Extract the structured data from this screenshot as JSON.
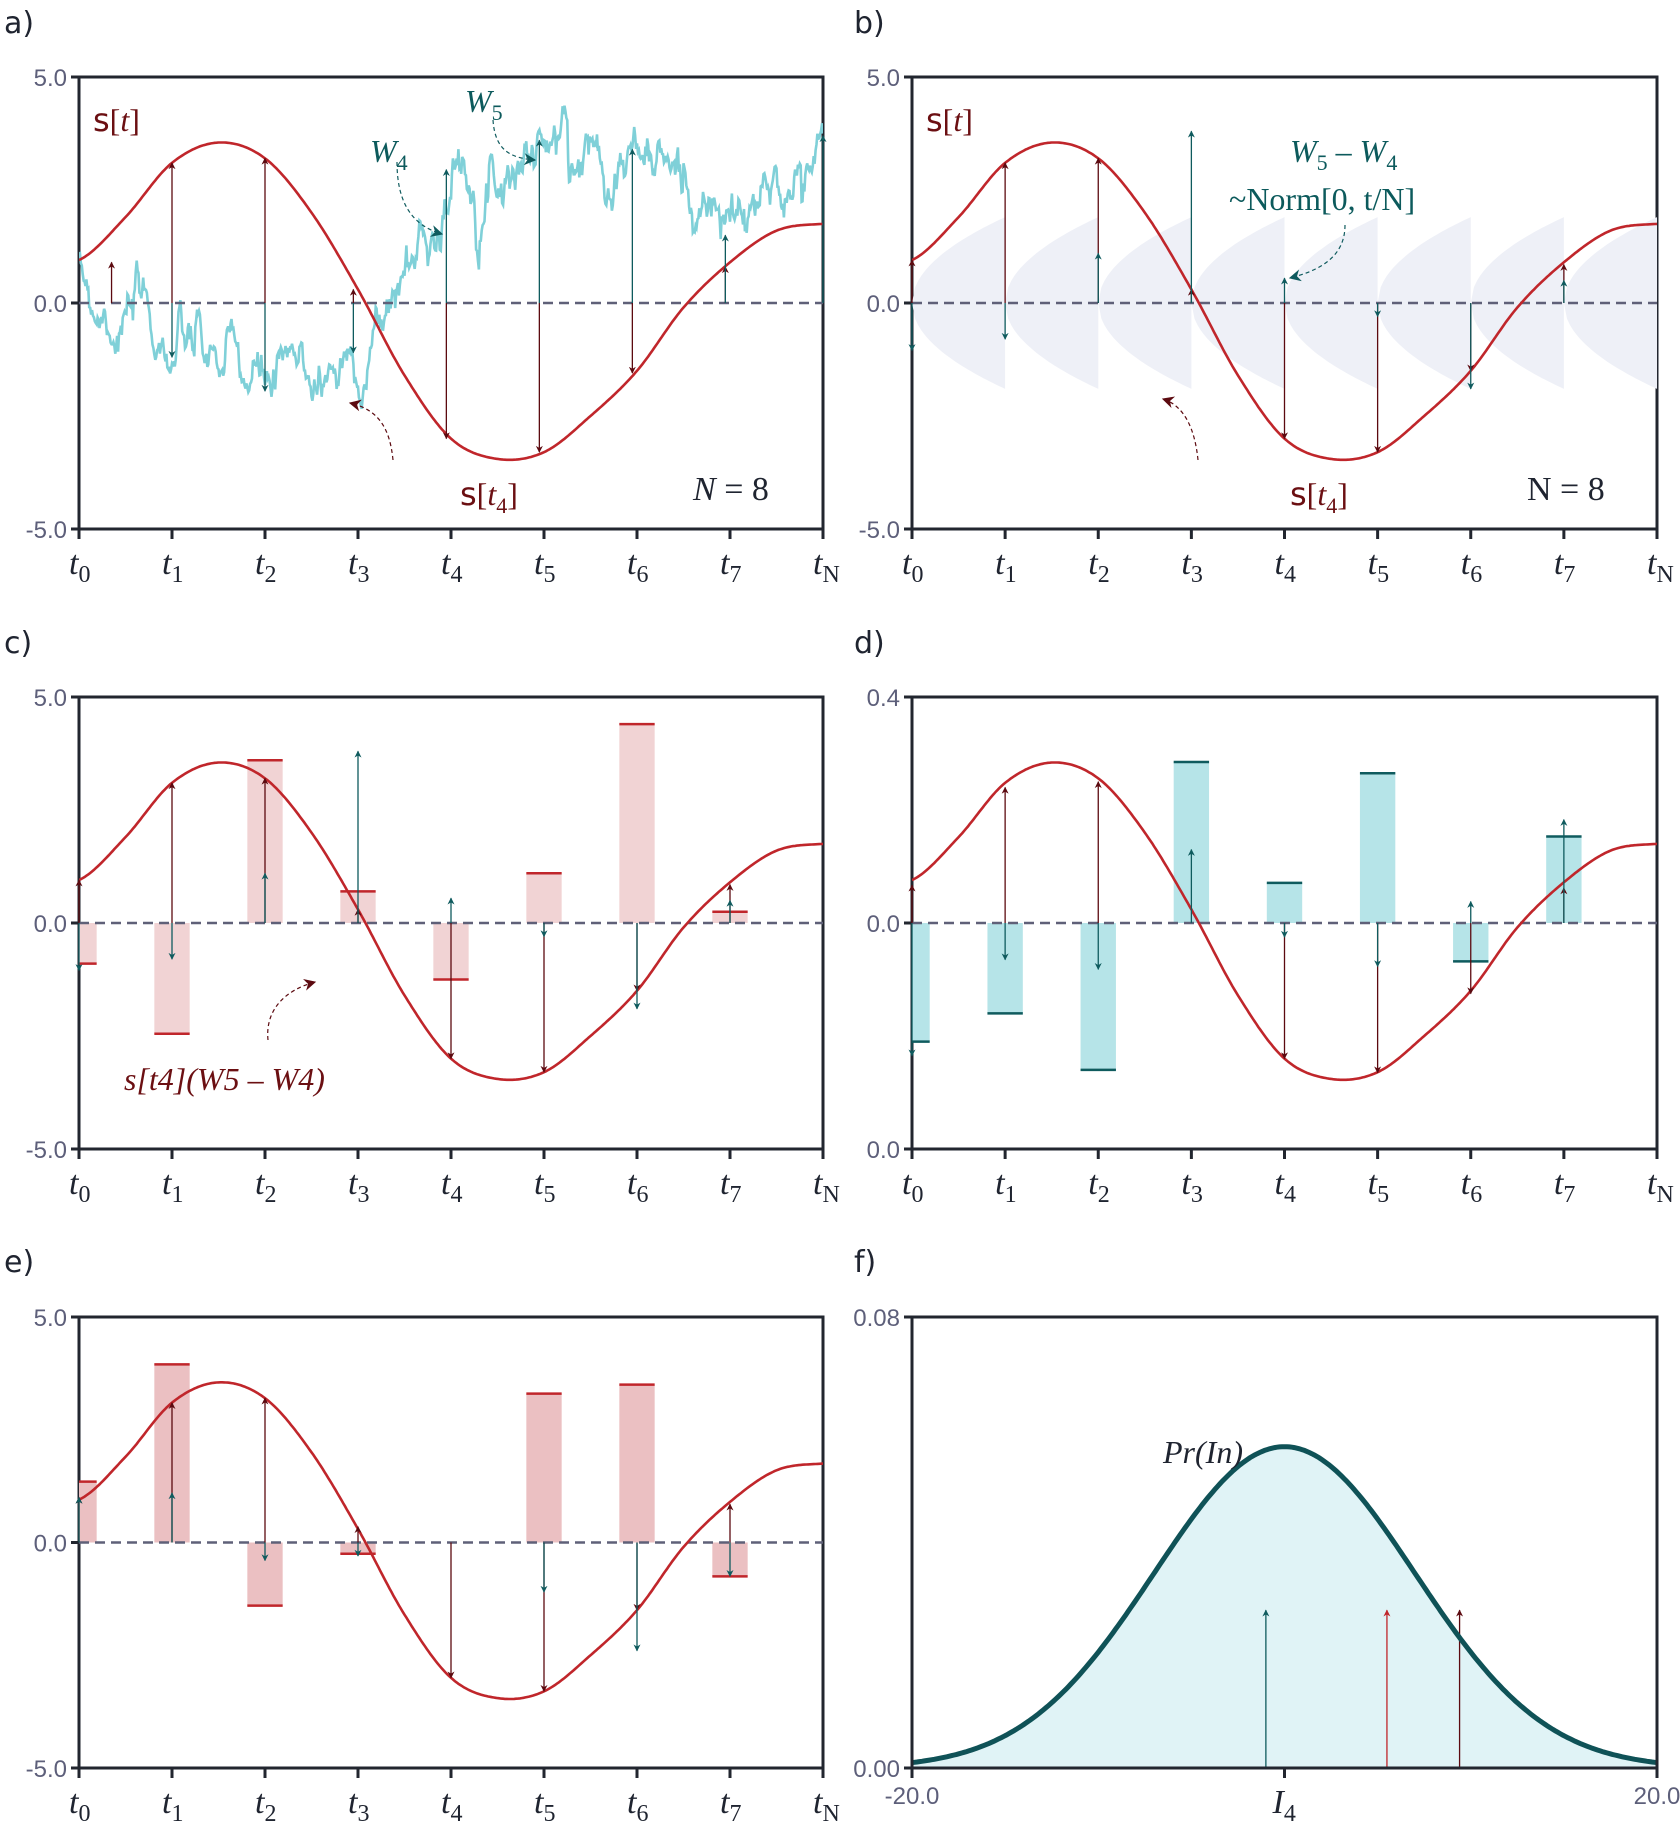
{
  "figure": {
    "panel_labels": [
      "a)",
      "b)",
      "c)",
      "d)",
      "e)",
      "f)"
    ],
    "colors": {
      "curve": "#c0262b",
      "s_arrow": "#5c0a10",
      "w_arrow": "#0f5b5e",
      "brownian": "#7fd0d8",
      "bar_red": "#ebc0c2",
      "bar_red_top": "#c0262b",
      "bar_teal": "#b6e4e8",
      "bar_teal_top": "#0f5b5e",
      "gauss_fill": "#e0f3f6",
      "gauss_line": "#0f5257",
      "band": "#eef0f7",
      "axis": "#22262f",
      "zero": "#5f6078"
    }
  },
  "chart_data": [
    {
      "panel": "a",
      "type": "line",
      "title": "",
      "xlabel": "",
      "ylabel": "",
      "ylim": [
        -5.0,
        5.0
      ],
      "yticks": [
        "5.0",
        "0.0",
        "-5.0"
      ],
      "xticks": [
        {
          "t": "t",
          "sub": "0"
        },
        {
          "t": "t",
          "sub": "1"
        },
        {
          "t": "t",
          "sub": "2"
        },
        {
          "t": "t",
          "sub": "3"
        },
        {
          "t": "t",
          "sub": "4"
        },
        {
          "t": "t",
          "sub": "5"
        },
        {
          "t": "t",
          "sub": "6"
        },
        {
          "t": "t",
          "sub": "7"
        },
        {
          "t": "t",
          "sub": "N"
        }
      ],
      "curve_s": {
        "x": [
          0,
          0.5,
          1,
          1.5,
          2,
          2.5,
          3,
          3.5,
          4,
          4.5,
          5,
          5.5,
          6,
          6.5,
          7,
          7.5,
          8
        ],
        "y": [
          0.95,
          1.9,
          3.1,
          3.55,
          3.2,
          2.0,
          0.3,
          -1.6,
          -3.0,
          -3.45,
          -3.3,
          -2.5,
          -1.5,
          -0.1,
          0.9,
          1.6,
          1.75
        ]
      },
      "s_arrows": [
        {
          "x": 0.35,
          "y": 0.9
        },
        {
          "x": 1,
          "y": 3.1
        },
        {
          "x": 2,
          "y": 3.2
        },
        {
          "x": 2.95,
          "y": 0.3
        },
        {
          "x": 3.95,
          "y": -3.0
        },
        {
          "x": 4.95,
          "y": -3.3
        },
        {
          "x": 5.95,
          "y": -1.55
        },
        {
          "x": 6.95,
          "y": 0.8
        }
      ],
      "w_arrows": [
        {
          "x": 1,
          "y": -1.2
        },
        {
          "x": 2,
          "y": -1.95
        },
        {
          "x": 2.95,
          "y": -1.1
        },
        {
          "x": 3.95,
          "y": 2.95
        },
        {
          "x": 4.95,
          "y": 3.6
        },
        {
          "x": 5.95,
          "y": 3.4
        },
        {
          "x": 6.95,
          "y": 1.5
        },
        {
          "x": 8,
          "y": 3.7
        }
      ],
      "annotations": {
        "s_label": "s",
        "s_arg": "t",
        "w4": "W",
        "w4_sub": "4",
        "w5": "W",
        "w5_sub": "5",
        "st4": "s",
        "st4_arg": "t",
        "st4_sub": "4",
        "n_label": "N = 8"
      }
    },
    {
      "panel": "b",
      "type": "line",
      "ylim": [
        -5.0,
        5.0
      ],
      "yticks": [
        "5.0",
        "0.0",
        "-5.0"
      ],
      "xticks": [
        {
          "t": "t",
          "sub": "0"
        },
        {
          "t": "t",
          "sub": "1"
        },
        {
          "t": "t",
          "sub": "2"
        },
        {
          "t": "t",
          "sub": "3"
        },
        {
          "t": "t",
          "sub": "4"
        },
        {
          "t": "t",
          "sub": "5"
        },
        {
          "t": "t",
          "sub": "6"
        },
        {
          "t": "t",
          "sub": "7"
        },
        {
          "t": "t",
          "sub": "N"
        }
      ],
      "s_arrows": [
        {
          "x": 0,
          "y": 0.95
        },
        {
          "x": 1,
          "y": 3.1
        },
        {
          "x": 2,
          "y": 3.2
        },
        {
          "x": 3,
          "y": 0.3
        },
        {
          "x": 4,
          "y": -3.0
        },
        {
          "x": 5,
          "y": -3.3
        },
        {
          "x": 6,
          "y": -1.5
        },
        {
          "x": 7,
          "y": 0.85
        }
      ],
      "dw_arrows": [
        {
          "x": 0,
          "y": -1.05
        },
        {
          "x": 1,
          "y": -0.8
        },
        {
          "x": 2,
          "y": 1.1
        },
        {
          "x": 3,
          "y": 3.8
        },
        {
          "x": 4,
          "y": 0.55
        },
        {
          "x": 5,
          "y": -0.3
        },
        {
          "x": 6,
          "y": -1.9
        },
        {
          "x": 7,
          "y": 0.5
        }
      ],
      "band_halfwidth": 1.9,
      "annotations": {
        "s_label": "s",
        "s_arg": "t",
        "diff_w5": "W",
        "diff_w5_sub": "5",
        "diff_minus": " – ",
        "diff_w4": "W",
        "diff_w4_sub": "4",
        "norm": "~Norm[0, t/N]",
        "st4": "s",
        "st4_arg": "t",
        "st4_sub": "4",
        "n_label": "N = 8"
      }
    },
    {
      "panel": "c",
      "type": "bar",
      "ylim": [
        -5.0,
        5.0
      ],
      "yticks": [
        "5.0",
        "0.0",
        "-5.0"
      ],
      "xticks": [
        {
          "t": "t",
          "sub": "0"
        },
        {
          "t": "t",
          "sub": "1"
        },
        {
          "t": "t",
          "sub": "2"
        },
        {
          "t": "t",
          "sub": "3"
        },
        {
          "t": "t",
          "sub": "4"
        },
        {
          "t": "t",
          "sub": "5"
        },
        {
          "t": "t",
          "sub": "6"
        },
        {
          "t": "t",
          "sub": "7"
        },
        {
          "t": "t",
          "sub": "N"
        }
      ],
      "bars": [
        -0.9,
        -2.45,
        3.6,
        0.7,
        -1.25,
        1.1,
        4.4,
        0.25
      ],
      "s_arrows": [
        {
          "x": 0,
          "y": 0.95
        },
        {
          "x": 1,
          "y": 3.1
        },
        {
          "x": 2,
          "y": 3.2
        },
        {
          "x": 3,
          "y": 0.3
        },
        {
          "x": 4,
          "y": -3.0
        },
        {
          "x": 5,
          "y": -3.3
        },
        {
          "x": 6,
          "y": -1.5
        },
        {
          "x": 7,
          "y": 0.85
        }
      ],
      "dw_arrows": [
        {
          "x": 0,
          "y": -1.05
        },
        {
          "x": 1,
          "y": -0.8
        },
        {
          "x": 2,
          "y": 1.1
        },
        {
          "x": 3,
          "y": 3.8
        },
        {
          "x": 4,
          "y": 0.55
        },
        {
          "x": 5,
          "y": -0.3
        },
        {
          "x": 6,
          "y": -1.9
        },
        {
          "x": 7,
          "y": 0.5
        }
      ],
      "annotations": {
        "product_label": "s[t4](W5 – W4)"
      }
    },
    {
      "panel": "d",
      "type": "bar",
      "ylim": [
        -0.4,
        0.4
      ],
      "yticks": [
        "0.4",
        "0.0",
        "0.0"
      ],
      "xticks": [
        {
          "t": "t",
          "sub": "0"
        },
        {
          "t": "t",
          "sub": "1"
        },
        {
          "t": "t",
          "sub": "2"
        },
        {
          "t": "t",
          "sub": "3"
        },
        {
          "t": "t",
          "sub": "4"
        },
        {
          "t": "t",
          "sub": "5"
        },
        {
          "t": "t",
          "sub": "6"
        },
        {
          "t": "t",
          "sub": "7"
        },
        {
          "t": "t",
          "sub": "N"
        }
      ],
      "bars": [
        -0.21,
        -0.16,
        -0.26,
        0.285,
        0.071,
        0.265,
        -0.068,
        0.153
      ],
      "s_arrows": [
        {
          "x": 0,
          "y": 0.067
        },
        {
          "x": 1,
          "y": 0.24
        },
        {
          "x": 2,
          "y": 0.25
        },
        {
          "x": 3,
          "y": 0.0
        },
        {
          "x": 4,
          "y": -0.24
        },
        {
          "x": 5,
          "y": -0.265
        },
        {
          "x": 6,
          "y": -0.125
        },
        {
          "x": 7,
          "y": 0.062
        }
      ],
      "dw_arrows": [
        {
          "x": 0,
          "y": -0.235
        },
        {
          "x": 1,
          "y": -0.065
        },
        {
          "x": 2,
          "y": -0.082
        },
        {
          "x": 3,
          "y": 0.13
        },
        {
          "x": 4,
          "y": -0.025
        },
        {
          "x": 5,
          "y": -0.077
        },
        {
          "x": 6,
          "y": 0.038
        },
        {
          "x": 7,
          "y": 0.183
        }
      ]
    },
    {
      "panel": "e",
      "type": "bar",
      "ylim": [
        -5.0,
        5.0
      ],
      "yticks": [
        "5.0",
        "0.0",
        "-5.0"
      ],
      "xticks": [
        {
          "t": "t",
          "sub": "0"
        },
        {
          "t": "t",
          "sub": "1"
        },
        {
          "t": "t",
          "sub": "2"
        },
        {
          "t": "t",
          "sub": "3"
        },
        {
          "t": "t",
          "sub": "4"
        },
        {
          "t": "t",
          "sub": "5"
        },
        {
          "t": "t",
          "sub": "6"
        },
        {
          "t": "t",
          "sub": "7"
        },
        {
          "t": "t",
          "sub": "N"
        }
      ],
      "bars": [
        1.35,
        3.95,
        -1.4,
        -0.25,
        0,
        3.3,
        3.5,
        -0.75
      ],
      "s_arrows": [
        {
          "x": 0,
          "y": 1.0
        },
        {
          "x": 1,
          "y": 3.1
        },
        {
          "x": 2,
          "y": 3.2
        },
        {
          "x": 3,
          "y": 0.35
        },
        {
          "x": 4,
          "y": -3.0
        },
        {
          "x": 5,
          "y": -3.3
        },
        {
          "x": 6,
          "y": -1.5
        },
        {
          "x": 7,
          "y": 0.85
        }
      ],
      "dw_arrows": [
        {
          "x": 0,
          "y": 1.0
        },
        {
          "x": 1,
          "y": 1.1
        },
        {
          "x": 2,
          "y": -0.4
        },
        {
          "x": 3,
          "y": -0.3
        },
        {
          "x": 4,
          "y": 0
        },
        {
          "x": 5,
          "y": -1.1
        },
        {
          "x": 6,
          "y": -2.4
        },
        {
          "x": 7,
          "y": -0.75
        }
      ]
    },
    {
      "panel": "f",
      "type": "area",
      "xlim": [
        -20.0,
        20.0
      ],
      "ylim": [
        0.0,
        0.08
      ],
      "yticks": [
        "0.08",
        "0.00"
      ],
      "xticks": [
        "-20.0",
        "20.0"
      ],
      "center_label": {
        "t": "I",
        "sub": "4"
      },
      "gaussian": {
        "mean": 0.0,
        "std": 7.0
      },
      "curve_label": "Pr(In)",
      "markers": [
        {
          "x": -1.0,
          "y": 0.028,
          "kind": "teal"
        },
        {
          "x": 5.5,
          "y": 0.028,
          "kind": "red"
        },
        {
          "x": 9.4,
          "y": 0.028,
          "kind": "dark"
        }
      ]
    }
  ]
}
